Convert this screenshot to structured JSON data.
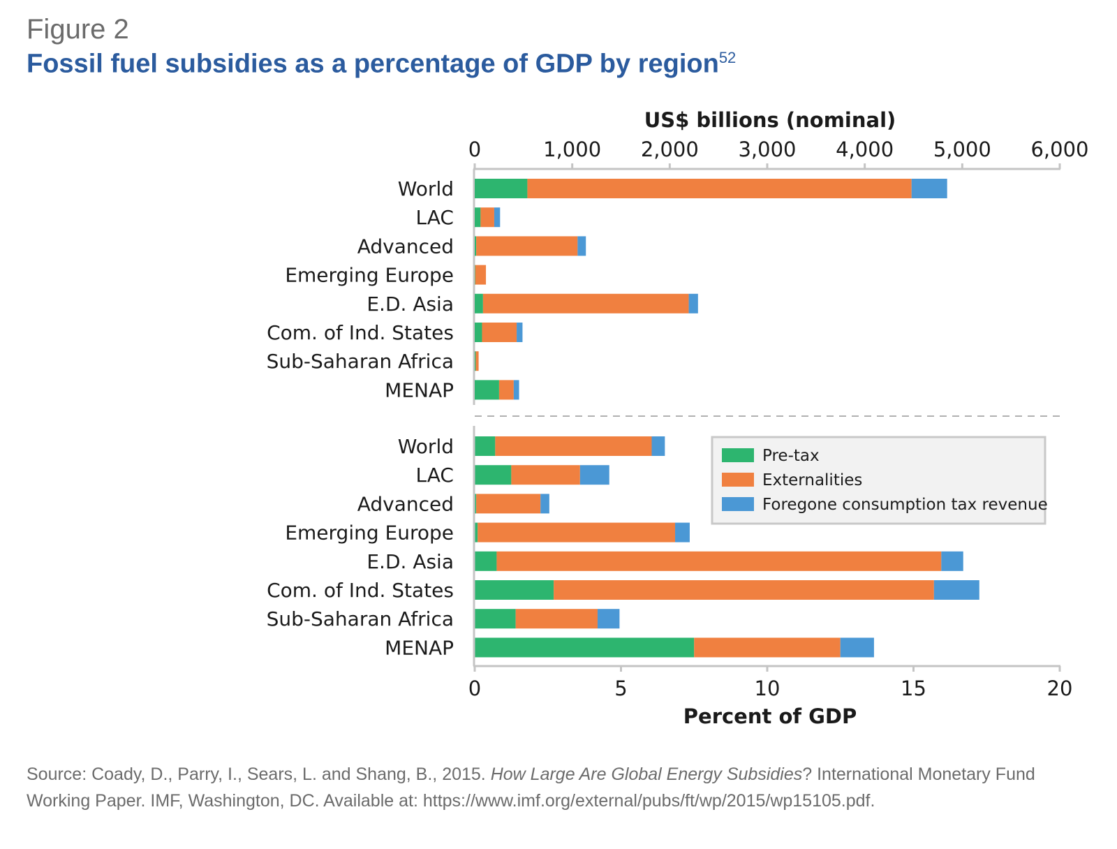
{
  "figure": {
    "label": "Figure 2",
    "title": "Fossil fuel subsidies as a percentage of GDP by region",
    "title_superscript": "52"
  },
  "source": {
    "prefix": "Source: Coady, D., Parry, I., Sears, L. and Shang, B., 2015. ",
    "italic": "How Large Are Global Energy Subsidies",
    "suffix": "? International Monetary Fund Working Paper. IMF, Washington, DC. Available at: https://www.imf.org/external/pubs/ft/wp/2015/wp15105.pdf."
  },
  "chart_data": [
    {
      "type": "bar",
      "orientation": "horizontal",
      "stacked": true,
      "title": "",
      "xlabel": "US$ billions (nominal)",
      "axis_position": "top",
      "xlim": [
        0,
        6000
      ],
      "xticks": [
        0,
        1000,
        2000,
        3000,
        4000,
        5000,
        6000
      ],
      "xtick_labels": [
        "0",
        "1,000",
        "2,000",
        "3,000",
        "4,000",
        "5,000",
        "6,000"
      ],
      "categories": [
        "World",
        "LAC",
        "Advanced",
        "Emerging Europe",
        "E.D. Asia",
        "Com. of Ind. States",
        "Sub-Saharan Africa",
        "MENAP"
      ],
      "series": [
        {
          "name": "Pre-tax",
          "color": "#2db56f",
          "values": [
            540,
            60,
            15,
            5,
            85,
            75,
            10,
            250
          ]
        },
        {
          "name": "Externalities",
          "color": "#f08040",
          "values": [
            3940,
            140,
            1040,
            110,
            2110,
            355,
            30,
            150
          ]
        },
        {
          "name": "Foregone consumption tax revenue",
          "color": "#4b98d5",
          "values": [
            365,
            60,
            85,
            0,
            95,
            60,
            0,
            55
          ]
        }
      ]
    },
    {
      "type": "bar",
      "orientation": "horizontal",
      "stacked": true,
      "title": "",
      "xlabel": "Percent of GDP",
      "axis_position": "bottom",
      "xlim": [
        0,
        20
      ],
      "xticks": [
        0,
        5,
        10,
        15,
        20
      ],
      "xtick_labels": [
        "0",
        "5",
        "10",
        "15",
        "20"
      ],
      "categories": [
        "World",
        "LAC",
        "Advanced",
        "Emerging Europe",
        "E.D. Asia",
        "Com. of Ind. States",
        "Sub-Saharan Africa",
        "MENAP"
      ],
      "series": [
        {
          "name": "Pre-tax",
          "color": "#2db56f",
          "values": [
            0.7,
            1.25,
            0.05,
            0.1,
            0.75,
            2.7,
            1.4,
            7.5
          ]
        },
        {
          "name": "Externalities",
          "color": "#f08040",
          "values": [
            5.35,
            2.35,
            2.2,
            6.75,
            15.2,
            13.0,
            2.8,
            5.0
          ]
        },
        {
          "name": "Foregone consumption tax revenue",
          "color": "#4b98d5",
          "values": [
            0.45,
            1.0,
            0.3,
            0.5,
            0.75,
            1.55,
            0.75,
            1.15
          ]
        }
      ]
    }
  ],
  "legend": {
    "placement": "right",
    "entries": [
      "Pre-tax",
      "Externalities",
      "Foregone consumption tax revenue"
    ]
  }
}
